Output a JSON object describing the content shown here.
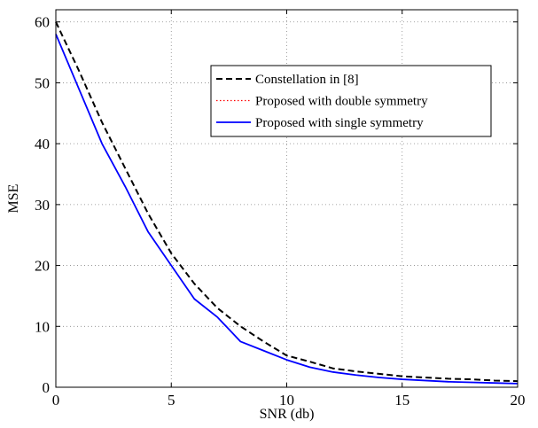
{
  "chart_data": {
    "type": "line",
    "title": "",
    "xlabel": "SNR (db)",
    "ylabel": "MSE",
    "xlim": [
      0,
      20
    ],
    "ylim": [
      0,
      62
    ],
    "xticks": [
      0,
      5,
      10,
      15,
      20
    ],
    "yticks": [
      0,
      10,
      20,
      30,
      40,
      50,
      60
    ],
    "grid": true,
    "legend_position": "top-right",
    "series": [
      {
        "name": "Constellation in [8]",
        "color": "#000000",
        "style": "dashed",
        "x": [
          0,
          1,
          2,
          3,
          4,
          5,
          6,
          7,
          8,
          9,
          10,
          11,
          12,
          13,
          14,
          15,
          16,
          17,
          18,
          19,
          20
        ],
        "y": [
          60,
          52,
          43.5,
          36,
          28.5,
          22,
          17,
          13,
          10,
          7.5,
          5.2,
          4.2,
          3.1,
          2.6,
          2.2,
          1.8,
          1.6,
          1.4,
          1.3,
          1.1,
          1.0
        ]
      },
      {
        "name": "Proposed with double symmetry",
        "color": "#ff0000",
        "style": "dotted",
        "x": [
          0,
          1,
          2,
          3,
          4,
          5,
          6,
          7,
          8,
          9,
          10,
          11,
          12,
          13,
          14,
          15,
          16,
          17,
          18,
          19,
          20
        ],
        "y": [
          58,
          49,
          40,
          33,
          25.5,
          20,
          14.5,
          11.5,
          7.5,
          6,
          4.5,
          3.3,
          2.5,
          2.0,
          1.6,
          1.3,
          1.1,
          0.9,
          0.8,
          0.7,
          0.6
        ]
      },
      {
        "name": "Proposed with single symmetry",
        "color": "#0000ff",
        "style": "solid",
        "x": [
          0,
          1,
          2,
          3,
          4,
          5,
          6,
          7,
          8,
          9,
          10,
          11,
          12,
          13,
          14,
          15,
          16,
          17,
          18,
          19,
          20
        ],
        "y": [
          58,
          49,
          40,
          33,
          25.5,
          20,
          14.5,
          11.5,
          7.5,
          6,
          4.5,
          3.3,
          2.5,
          2.0,
          1.6,
          1.3,
          1.1,
          0.9,
          0.8,
          0.7,
          0.6
        ]
      }
    ]
  }
}
